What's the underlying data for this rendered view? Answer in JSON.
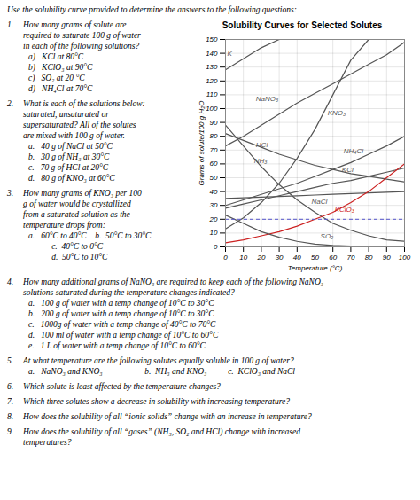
{
  "chart_data": {
    "type": "line",
    "title": "Solubility Curves for Selected Solutes",
    "xlabel": "Temperature (°C)",
    "ylabel": "Grams of solute/100 g H₂O",
    "xlim": [
      0,
      100
    ],
    "ylim": [
      0,
      150
    ],
    "xticks": [
      0,
      10,
      20,
      30,
      40,
      50,
      60,
      70,
      80,
      90,
      100
    ],
    "yticks": [
      0,
      10,
      20,
      30,
      40,
      50,
      60,
      70,
      80,
      90,
      100,
      110,
      120,
      130,
      140,
      150
    ],
    "grid": true,
    "series": [
      {
        "color": "#555555",
        "x": [
          0,
          10,
          20,
          30,
          40,
          50,
          60,
          70,
          80
        ],
        "values": [
          13,
          21,
          32,
          46,
          64,
          85,
          110,
          135,
          150
        ]
      },
      {
        "color": "#555555",
        "x": [
          0,
          10,
          20,
          30,
          40,
          50,
          60,
          70,
          80,
          90,
          100
        ],
        "values": [
          73,
          80,
          88,
          96,
          104,
          111,
          118,
          125,
          132,
          139,
          148
        ]
      },
      {
        "color": "#555555",
        "x": [
          0,
          10,
          20,
          30
        ],
        "values": [
          128,
          136,
          144,
          150
        ]
      },
      {
        "color": "#555555",
        "x": [
          0,
          10,
          20,
          30,
          40,
          50,
          60,
          70,
          80,
          90,
          100
        ],
        "values": [
          82,
          77,
          72,
          67,
          63,
          59,
          56,
          53,
          51,
          49,
          47
        ]
      },
      {
        "color": "#555555",
        "x": [
          0,
          10,
          20,
          30,
          40,
          50,
          60,
          70,
          80,
          90,
          100
        ],
        "values": [
          88,
          73,
          58,
          45,
          34,
          25,
          17,
          12,
          8,
          5,
          4
        ]
      },
      {
        "color": "#555555",
        "x": [
          0,
          10,
          20,
          30,
          40,
          50,
          60,
          70,
          80,
          90,
          100
        ],
        "values": [
          35,
          35.5,
          36,
          36.5,
          37,
          37.5,
          38,
          38.5,
          39,
          39.5,
          40
        ]
      },
      {
        "color": "#555555",
        "x": [
          0,
          10,
          20,
          30,
          40,
          50,
          60,
          70,
          80,
          90,
          100
        ],
        "values": [
          28,
          31,
          34,
          37,
          40,
          43,
          46,
          48,
          51,
          54,
          57
        ]
      },
      {
        "color": "#cc2222",
        "x": [
          0,
          10,
          20,
          30,
          40,
          50,
          60,
          70,
          80,
          90,
          100
        ],
        "values": [
          3,
          5,
          8,
          11,
          15,
          20,
          25,
          32,
          40,
          50,
          60
        ]
      },
      {
        "color": "#555555",
        "x": [
          0,
          10,
          20,
          30,
          40,
          50,
          60,
          70,
          80,
          90,
          100
        ],
        "values": [
          23,
          17,
          11,
          7,
          4,
          2,
          1,
          0.5,
          0.3,
          0.2,
          0.1
        ]
      },
      {
        "color": "#555555",
        "x": [
          0,
          10,
          20,
          30,
          40,
          50,
          60,
          70,
          80,
          90,
          100
        ],
        "values": [
          30,
          34,
          38,
          42,
          46,
          51,
          56,
          61,
          67,
          73,
          80
        ]
      }
    ],
    "annotations": [
      {
        "type": "text",
        "text": "K",
        "x": 1,
        "y": 140,
        "color": "#555555"
      },
      {
        "type": "text",
        "text": "NaNO₃",
        "x": 17,
        "y": 107,
        "color": "#555555"
      },
      {
        "type": "text",
        "text": "KNO₃",
        "x": 57,
        "y": 97,
        "color": "#555555"
      },
      {
        "type": "text",
        "text": "HCl",
        "x": 17,
        "y": 74,
        "color": "#555555"
      },
      {
        "type": "text",
        "text": "NH₃",
        "x": 16,
        "y": 62,
        "color": "#555555"
      },
      {
        "type": "text",
        "text": "NH₄Cl",
        "x": 66,
        "y": 69,
        "color": "#555555"
      },
      {
        "type": "text",
        "text": "KCl",
        "x": 65,
        "y": 56,
        "color": "#555555"
      },
      {
        "type": "text",
        "text": "NaCl",
        "x": 48,
        "y": 33,
        "color": "#555555"
      },
      {
        "type": "text",
        "text": "KClO₃",
        "x": 61,
        "y": 27,
        "color": "#cc2222"
      },
      {
        "type": "text",
        "text": "SO₂",
        "x": 53,
        "y": 8,
        "color": "#555555"
      },
      {
        "type": "hline",
        "y": 20,
        "color": "#5555cc",
        "line_style": "dashed"
      }
    ]
  },
  "text": {
    "header": "Use the solubility curve provided to determine the answers to the following questions:",
    "questions": [
      {
        "number": "1.",
        "lines": [
          "How many grams of solute are",
          "required to saturate 100 g of water",
          "in each of the following solutions?"
        ],
        "subs": [
          "a)   KCl at 80°C",
          "b)   KClO₃ at 90°C",
          "c)   SO₂ at 20 °C",
          "d)   NH₄Cl at 70°C"
        ]
      },
      {
        "number": "2.",
        "lines": [
          "What is each of the solutions below:",
          "saturated, unsaturated or",
          "supersaturated? All of the solutes",
          "are mixed with 100 g of water."
        ],
        "subs": [
          "a.   40 g of NaCl at 50°C",
          "b.   30 g of NH₃ at 30°C",
          "c.   70 g of HCl at 20°C",
          "d.   80 g of KNO₃ at 60°C"
        ]
      },
      {
        "number": "3.",
        "lines": [
          "How many grams of KNO₃ per 100",
          "g of water would be crystallized",
          "from a saturated solution as the",
          "temperature drops from:"
        ],
        "subs": [
          "a.   60°C to 40°C    b.  50°C to 30°C",
          "           c.  40°C to 0°C",
          "           d.  50°C to 10°C"
        ]
      },
      {
        "number": "4.",
        "lines": [
          "How many additional grams of NaNO₃ are required to keep each of the following NaNO₃",
          "solutions saturated during the temperature changes indicated?"
        ],
        "subs": [
          "a.   100 g of water with a temp change of 10°C to 30°C",
          "b.   200 g of water with a temp change of 10°C to 30°C",
          "c.   1000g of water with a temp change of 40°C to 70°C",
          "d.   100 ml of water with a temp change of 10°C to 60°C",
          "e.   1 L of water with a temp change of 10°C to 60°C"
        ]
      },
      {
        "number": "5.",
        "lines": [
          "At what temperature are the following solutes equally soluble in 100 g of water?"
        ],
        "subs": [
          "a.   NaNO₃ and KNO₃                    b.  NH₃ and KNO₃          c.  KClO₃ and NaCl"
        ]
      },
      {
        "number": "6.",
        "lines": [
          "Which solute is least affected by the temperature changes?"
        ],
        "subs": []
      },
      {
        "number": "7.",
        "lines": [
          "Which three solutes show a decrease in solubility with increasing temperature?"
        ],
        "subs": []
      },
      {
        "number": "8.",
        "lines": [
          "How does the solubility of all “ionic solids” change with an increase in temperature?"
        ],
        "subs": []
      },
      {
        "number": "9.",
        "lines": [
          "How does the solubility of all “gases” (NH₃, SO₂ and HCl) change with increased",
          "temperatures?"
        ],
        "subs": []
      }
    ]
  }
}
